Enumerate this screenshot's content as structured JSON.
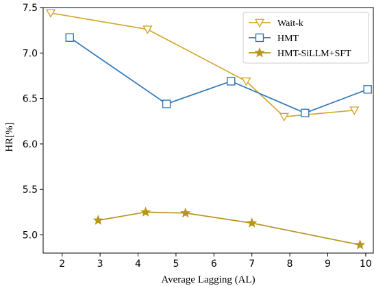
{
  "chart_data": {
    "type": "line",
    "xlabel": "Average Lagging (AL)",
    "ylabel": "HR[%]",
    "xlim": [
      1.5,
      10.2
    ],
    "ylim": [
      4.8,
      7.5
    ],
    "xticks": [
      2,
      3,
      4,
      5,
      6,
      7,
      8,
      9,
      10
    ],
    "yticks": [
      5.0,
      5.5,
      6.0,
      6.5,
      7.0,
      7.5
    ],
    "ytick_labels": [
      "5.0",
      "5.5",
      "6.0",
      "6.5",
      "7.0",
      "7.5"
    ],
    "grid": false,
    "legend_position": "top-right",
    "series": [
      {
        "name": "Wait-k",
        "color": "#d4a72c",
        "marker": "triangle-down",
        "x": [
          1.7,
          4.25,
          6.85,
          7.85,
          9.7
        ],
        "y": [
          7.44,
          7.26,
          6.69,
          6.3,
          6.37
        ]
      },
      {
        "name": "HMT",
        "color": "#2e75b6",
        "marker": "square",
        "x": [
          2.2,
          4.75,
          6.45,
          8.4,
          10.05
        ],
        "y": [
          7.17,
          6.44,
          6.69,
          6.34,
          6.6
        ]
      },
      {
        "name": "HMT-SiLLM+SFT",
        "color": "#b8961e",
        "marker": "star",
        "x": [
          2.95,
          4.2,
          5.25,
          7.0,
          9.85
        ],
        "y": [
          5.16,
          5.25,
          5.24,
          5.13,
          4.89
        ]
      }
    ]
  }
}
